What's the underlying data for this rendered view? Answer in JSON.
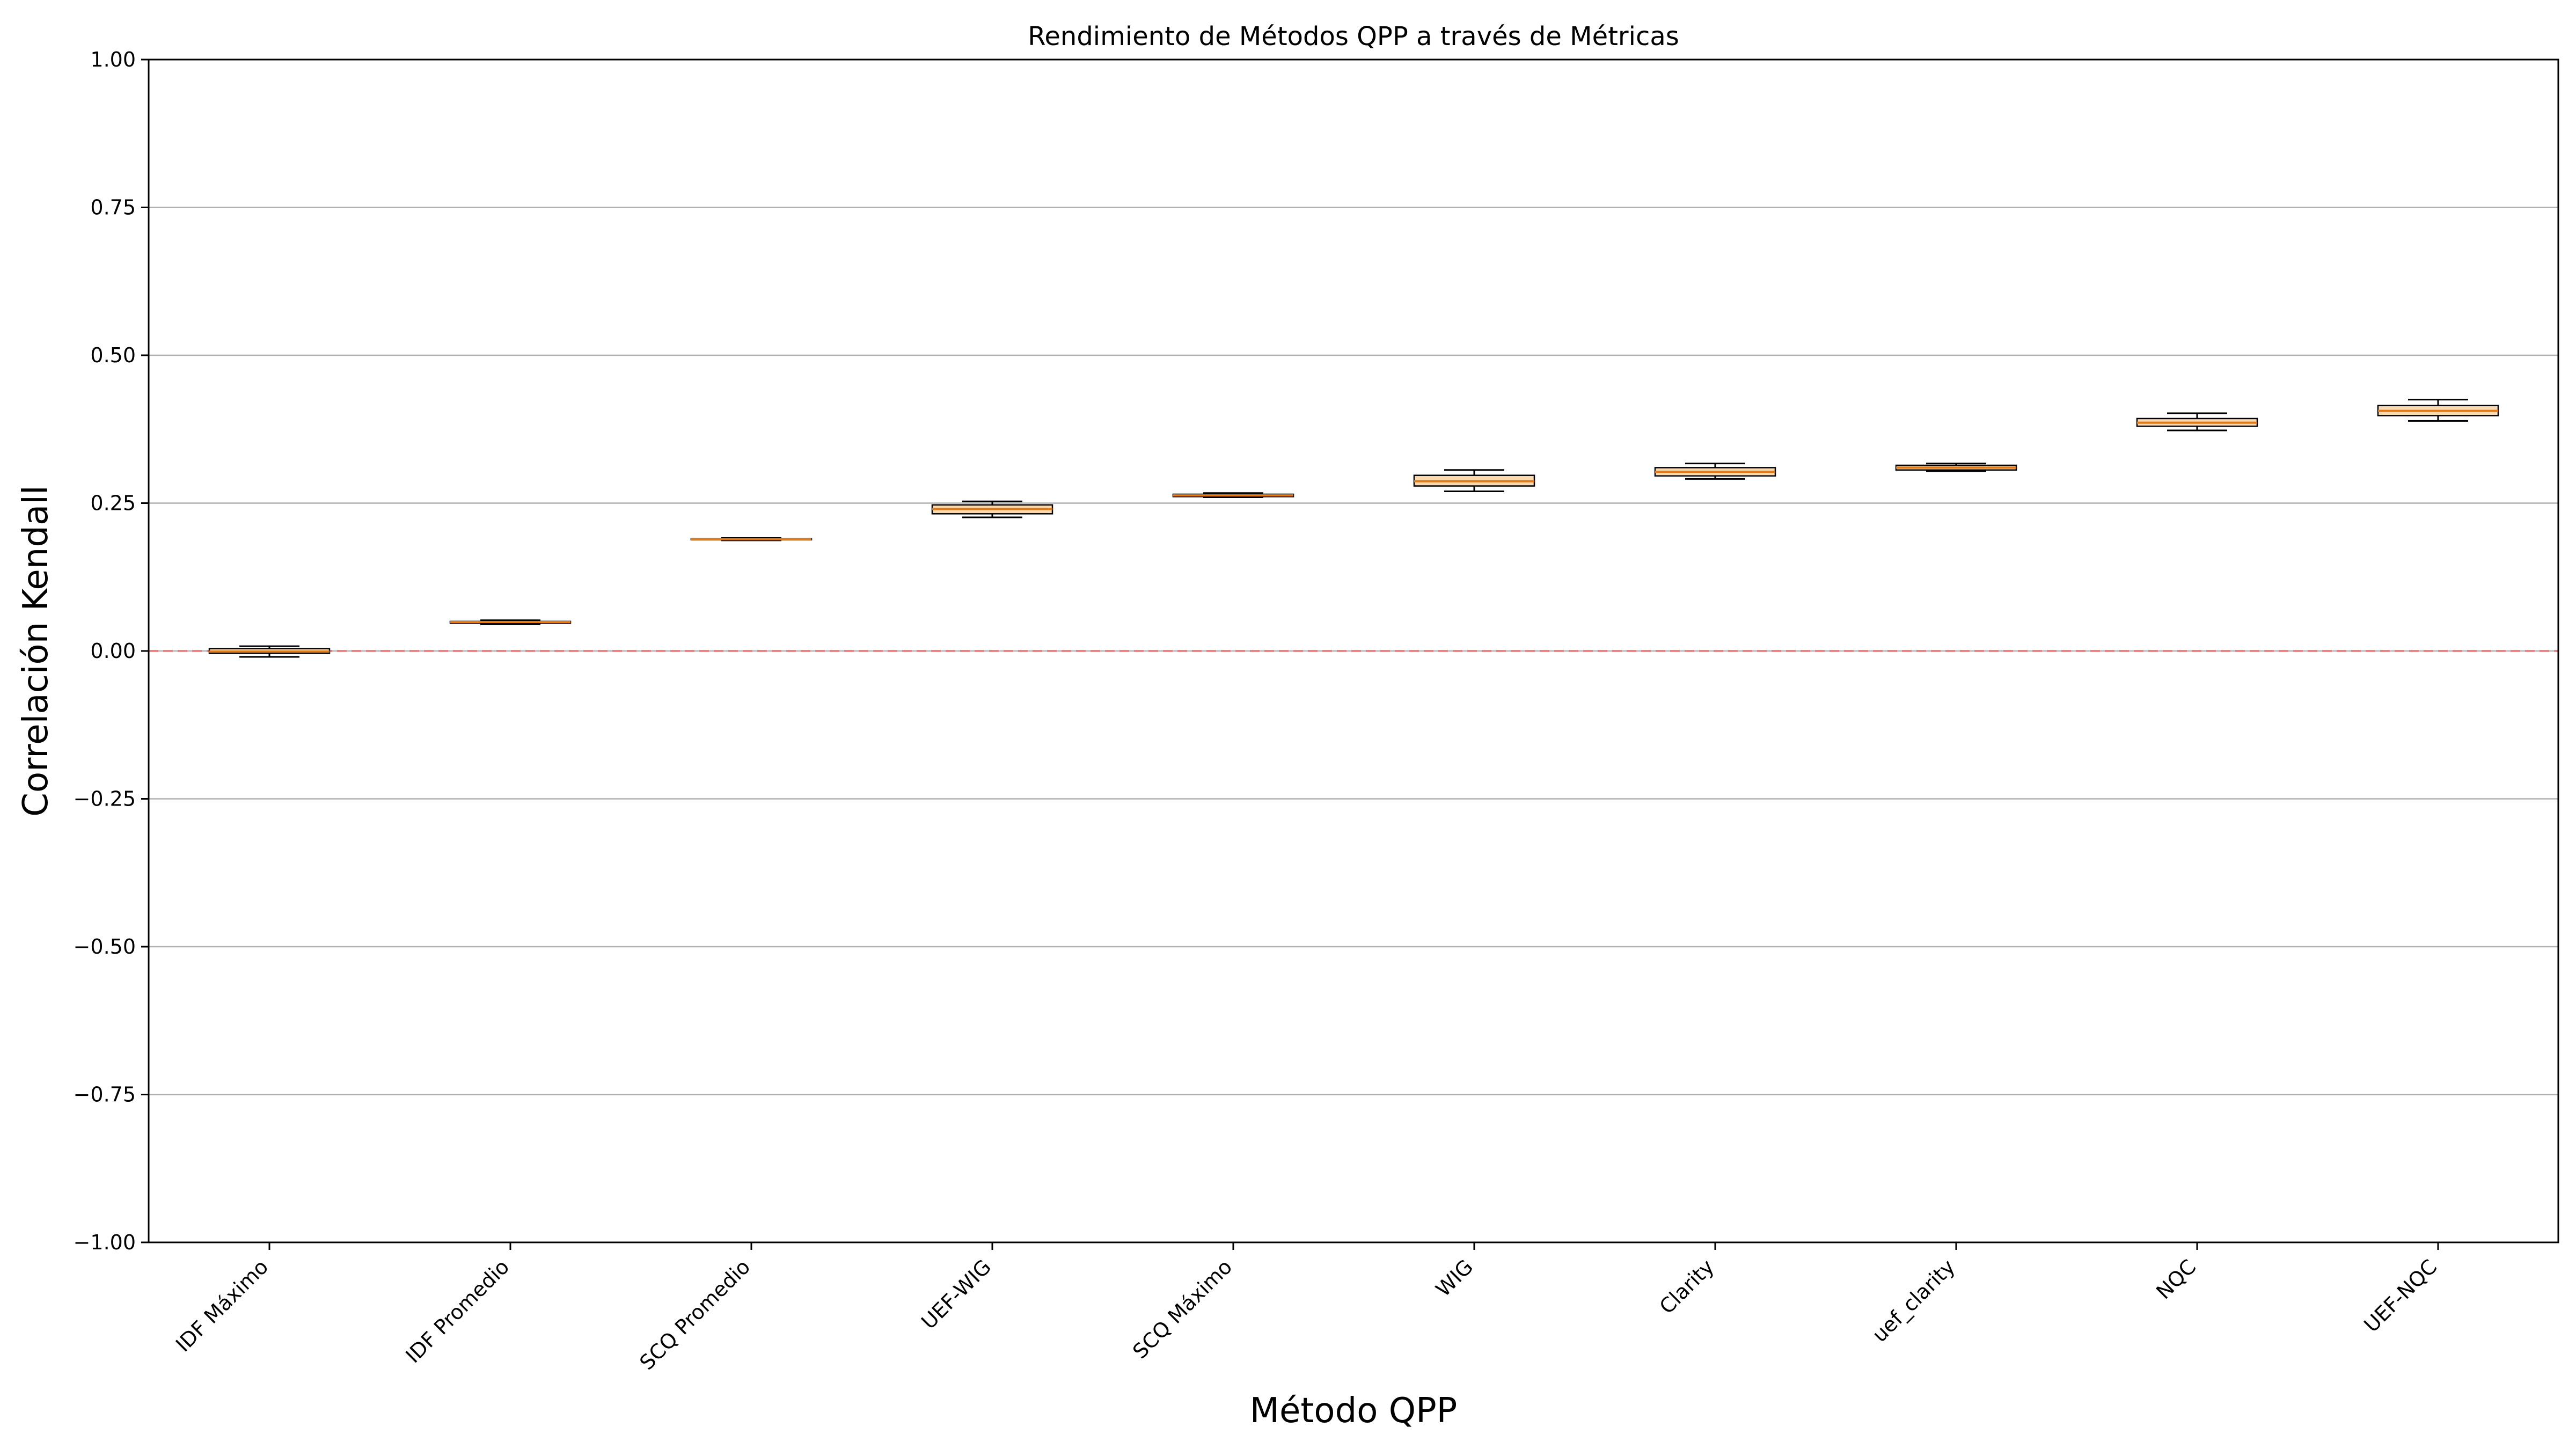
{
  "chart_data": {
    "type": "boxplot",
    "title": "Rendimiento de Métodos QPP a través de Métricas",
    "xlabel": "Método QPP",
    "ylabel": "Correlación Kendall",
    "ylim": [
      -1.0,
      1.0
    ],
    "yticks": [
      -1.0,
      -0.75,
      -0.5,
      -0.25,
      0.0,
      0.25,
      0.5,
      0.75,
      1.0
    ],
    "ytick_labels": [
      "−1.00",
      "−0.75",
      "−0.50",
      "−0.25",
      "0.00",
      "0.25",
      "0.50",
      "0.75",
      "1.00"
    ],
    "grid": "horizontal",
    "reference_line": {
      "y": 0.0,
      "style": "dashed",
      "color": "#e06666"
    },
    "box_color": "#fbd9b0",
    "median_color": "#e07b1a",
    "categories": [
      "IDF Máximo",
      "IDF Promedio",
      "SCQ Promedio",
      "UEF-WIG",
      "SCQ Máximo",
      "WIG",
      "Clarity",
      "uef_clarity",
      "NQC",
      "UEF-NQC"
    ],
    "boxes": [
      {
        "whislo": -0.01,
        "q1": -0.004,
        "med": -0.001,
        "q3": 0.004,
        "whishi": 0.008
      },
      {
        "whislo": 0.045,
        "q1": 0.047,
        "med": 0.049,
        "q3": 0.05,
        "whishi": 0.052
      },
      {
        "whislo": 0.187,
        "q1": 0.188,
        "med": 0.189,
        "q3": 0.19,
        "whishi": 0.191
      },
      {
        "whislo": 0.226,
        "q1": 0.232,
        "med": 0.24,
        "q3": 0.247,
        "whishi": 0.253
      },
      {
        "whislo": 0.26,
        "q1": 0.261,
        "med": 0.263,
        "q3": 0.265,
        "whishi": 0.267
      },
      {
        "whislo": 0.27,
        "q1": 0.279,
        "med": 0.287,
        "q3": 0.297,
        "whishi": 0.306
      },
      {
        "whislo": 0.291,
        "q1": 0.296,
        "med": 0.303,
        "q3": 0.31,
        "whishi": 0.317
      },
      {
        "whislo": 0.304,
        "q1": 0.306,
        "med": 0.31,
        "q3": 0.314,
        "whishi": 0.317
      },
      {
        "whislo": 0.373,
        "q1": 0.38,
        "med": 0.386,
        "q3": 0.393,
        "whishi": 0.402
      },
      {
        "whislo": 0.389,
        "q1": 0.398,
        "med": 0.406,
        "q3": 0.415,
        "whishi": 0.425
      }
    ]
  }
}
